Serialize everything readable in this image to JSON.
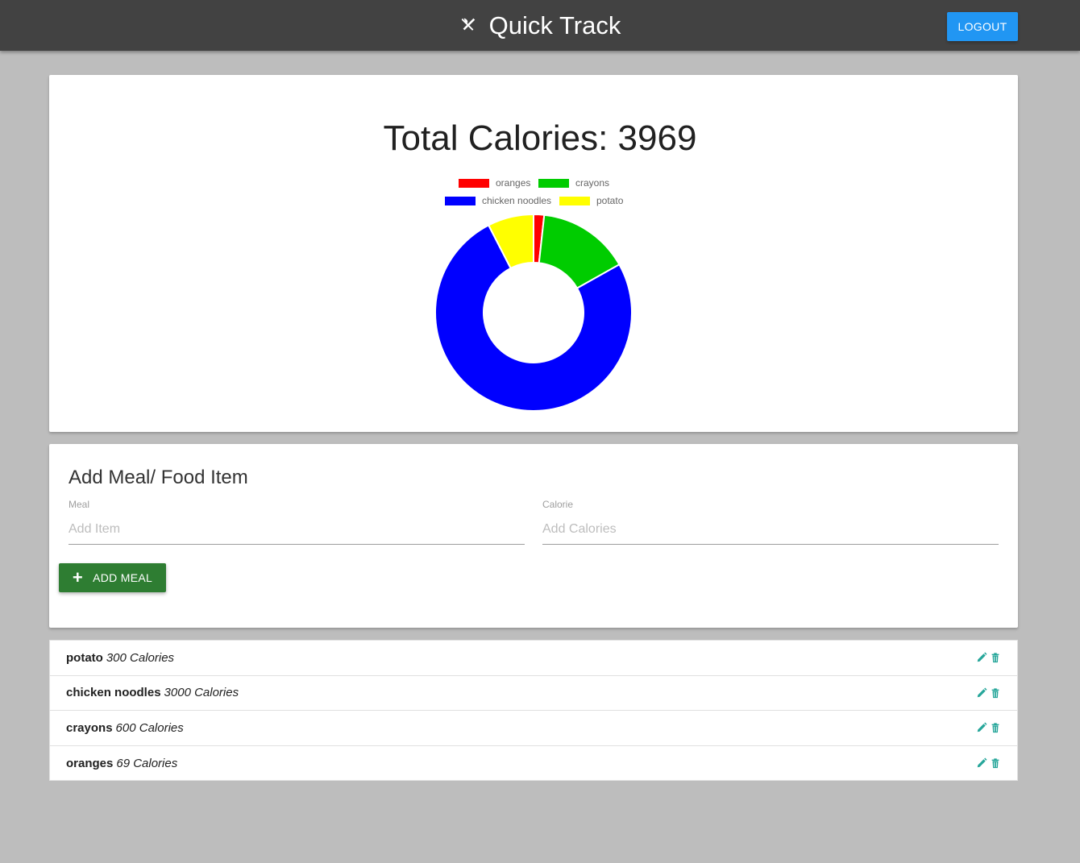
{
  "navbar": {
    "title": "Quick Track",
    "brand_icon": "fork-knife-icon",
    "logout_label": "LOGOUT",
    "logout_color": "#2196f3"
  },
  "summary": {
    "total_label": "Total Calories: 3969"
  },
  "chart_data": {
    "type": "pie",
    "variant": "doughnut",
    "title": "",
    "legend_position": "top",
    "slices": [
      {
        "label": "oranges",
        "value": 69,
        "color": "#ff0000"
      },
      {
        "label": "crayons",
        "value": 600,
        "color": "#00cc00"
      },
      {
        "label": "chicken noodles",
        "value": 3000,
        "color": "#0000ff"
      },
      {
        "label": "potato",
        "value": 300,
        "color": "#ffff00"
      }
    ]
  },
  "form": {
    "title": "Add Meal/ Food Item",
    "meal_label": "Meal",
    "meal_placeholder": "Add Item",
    "calorie_label": "Calorie",
    "calorie_placeholder": "Add Calories",
    "add_label": "ADD MEAL",
    "add_color": "#2e7d32"
  },
  "items": [
    {
      "name": "potato",
      "calories": "300 Calories"
    },
    {
      "name": "chicken noodles",
      "calories": "3000 Calories"
    },
    {
      "name": "crayons",
      "calories": "600 Calories"
    },
    {
      "name": "oranges",
      "calories": "69 Calories"
    }
  ],
  "icons": {
    "edit": "pencil-icon",
    "delete": "trash-icon"
  }
}
